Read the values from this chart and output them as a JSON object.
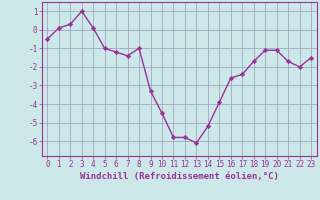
{
  "x": [
    0,
    1,
    2,
    3,
    4,
    5,
    6,
    7,
    8,
    9,
    10,
    11,
    12,
    13,
    14,
    15,
    16,
    17,
    18,
    19,
    20,
    21,
    22,
    23
  ],
  "y": [
    -0.5,
    0.1,
    0.3,
    1.0,
    0.1,
    -1.0,
    -1.2,
    -1.4,
    -1.0,
    -3.3,
    -4.5,
    -5.8,
    -5.8,
    -6.1,
    -5.2,
    -3.9,
    -2.6,
    -2.4,
    -1.7,
    -1.1,
    -1.1,
    -1.7,
    -2.0,
    -1.5
  ],
  "line_color": "#993399",
  "marker": "D",
  "marker_size": 2.2,
  "xlabel": "Windchill (Refroidissement éolien,°C)",
  "xlabel_fontsize": 6.5,
  "ylim": [
    -6.8,
    1.5
  ],
  "xlim": [
    -0.5,
    23.5
  ],
  "yticks": [
    -6,
    -5,
    -4,
    -3,
    -2,
    -1,
    0,
    1
  ],
  "xticks": [
    0,
    1,
    2,
    3,
    4,
    5,
    6,
    7,
    8,
    9,
    10,
    11,
    12,
    13,
    14,
    15,
    16,
    17,
    18,
    19,
    20,
    21,
    22,
    23
  ],
  "bg_color": "#cce8e8",
  "grid_color": "#9999bb",
  "tick_fontsize": 5.5,
  "linewidth": 1.0
}
